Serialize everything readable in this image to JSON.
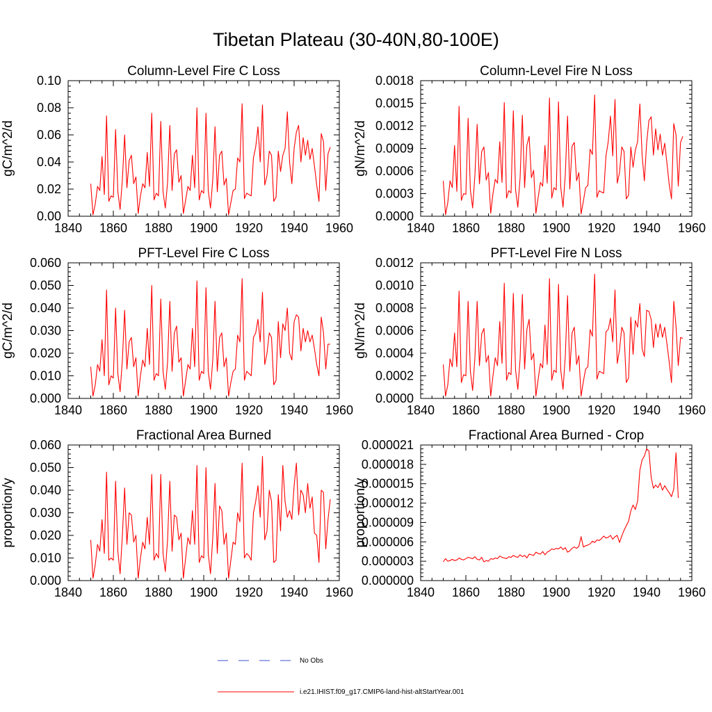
{
  "title": "Tibetan Plateau (30-40N,80-100E)",
  "legend": {
    "items": [
      {
        "label": "No Obs",
        "color": "#3b4fd1",
        "style": "dashed"
      },
      {
        "label": "i.e21.IHIST.f09_g17.CMIP6-land-hist-altStartYear.001",
        "color": "#ff0000",
        "style": "solid"
      }
    ]
  },
  "colors": {
    "series": "#ff0000",
    "axes": "#000000",
    "obs": "#3b4fd1"
  },
  "chart_data": [
    {
      "type": "line",
      "title": "Column-Level Fire C Loss",
      "ylabel": "gC/m^2/d",
      "xlim": [
        1840,
        1960
      ],
      "ylim": [
        0,
        0.1
      ],
      "xticks": [
        "1840",
        "1860",
        "1880",
        "1900",
        "1920",
        "1940",
        "1960"
      ],
      "yticks": [
        "0.00",
        "0.02",
        "0.04",
        "0.06",
        "0.08",
        "0.10"
      ],
      "x_start": 1850,
      "series": [
        {
          "name": "i.e21.IHIST.f09_g17.CMIP6-land-hist-altStartYear.001",
          "values": [
            0.024,
            0.001,
            0.009,
            0.022,
            0.019,
            0.044,
            0.016,
            0.074,
            0.011,
            0.015,
            0.014,
            0.064,
            0.018,
            0.005,
            0.027,
            0.06,
            0.021,
            0.041,
            0.045,
            0.024,
            0.029,
            0.002,
            0.015,
            0.024,
            0.021,
            0.047,
            0.022,
            0.076,
            0.012,
            0.017,
            0.015,
            0.07,
            0.018,
            0.006,
            0.025,
            0.067,
            0.019,
            0.046,
            0.049,
            0.025,
            0.03,
            0.002,
            0.012,
            0.022,
            0.019,
            0.045,
            0.021,
            0.08,
            0.012,
            0.019,
            0.017,
            0.076,
            0.019,
            0.006,
            0.027,
            0.066,
            0.018,
            0.045,
            0.048,
            0.023,
            0.028,
            0.001,
            0.01,
            0.019,
            0.02,
            0.043,
            0.04,
            0.083,
            0.013,
            0.017,
            0.016,
            0.015,
            0.043,
            0.051,
            0.066,
            0.04,
            0.082,
            0.023,
            0.03,
            0.048,
            0.045,
            0.011,
            0.014,
            0.048,
            0.033,
            0.045,
            0.05,
            0.077,
            0.04,
            0.024,
            0.05,
            0.062,
            0.067,
            0.04,
            0.058,
            0.045,
            0.056,
            0.042,
            0.05,
            0.037,
            0.023,
            0.011,
            0.061,
            0.055,
            0.019,
            0.046,
            0.051
          ]
        }
      ]
    },
    {
      "type": "line",
      "title": "Column-Level Fire N Loss",
      "ylabel": "gN/m^2/d",
      "xlim": [
        1840,
        1960
      ],
      "ylim": [
        0,
        0.0018
      ],
      "xticks": [
        "1840",
        "1860",
        "1880",
        "1900",
        "1920",
        "1940",
        "1960"
      ],
      "yticks": [
        "0.0000",
        "0.0003",
        "0.0006",
        "0.0009",
        "0.0012",
        "0.0015",
        "0.0018"
      ],
      "x_start": 1850,
      "series": [
        {
          "name": "i.e21.IHIST.f09_g17.CMIP6-land-hist-altStartYear.001",
          "values": [
            0.00047,
            2e-05,
            0.00018,
            0.00047,
            0.00038,
            0.00094,
            0.00033,
            0.00146,
            0.00021,
            0.0003,
            0.00029,
            0.0013,
            0.00035,
            0.00011,
            0.00054,
            0.00122,
            0.00043,
            0.00086,
            0.00092,
            0.00048,
            0.00058,
            4e-05,
            0.0003,
            0.00049,
            0.00044,
            0.00099,
            0.00045,
            0.00151,
            0.00024,
            0.00034,
            0.00031,
            0.0014,
            0.00035,
            0.00012,
            0.00051,
            0.00134,
            0.00038,
            0.00094,
            0.00106,
            0.00051,
            0.00061,
            4e-05,
            0.00025,
            0.00045,
            0.0004,
            0.00094,
            0.00044,
            0.00157,
            0.00024,
            0.00038,
            0.00035,
            0.00152,
            0.00038,
            0.00012,
            0.00055,
            0.00133,
            0.00036,
            0.00093,
            0.00098,
            0.00047,
            0.00058,
            3e-05,
            0.0002,
            0.00038,
            0.00041,
            0.00089,
            0.00082,
            0.00161,
            0.00025,
            0.00034,
            0.00032,
            0.00031,
            0.0008,
            0.00099,
            0.00133,
            0.0008,
            0.00155,
            0.00044,
            0.00058,
            0.00092,
            0.00086,
            0.00023,
            0.00028,
            0.00092,
            0.00065,
            0.00088,
            0.00099,
            0.00149,
            0.00081,
            0.00047,
            0.00097,
            0.00127,
            0.00132,
            0.00081,
            0.00116,
            0.00088,
            0.00109,
            0.00081,
            0.00097,
            0.0007,
            0.00042,
            0.00023,
            0.00123,
            0.00108,
            0.0004,
            0.00098,
            0.00106
          ]
        }
      ]
    },
    {
      "type": "line",
      "title": "PFT-Level Fire C Loss",
      "ylabel": "gC/m^2/d",
      "xlim": [
        1840,
        1960
      ],
      "ylim": [
        0,
        0.06
      ],
      "xticks": [
        "1840",
        "1860",
        "1880",
        "1900",
        "1920",
        "1940",
        "1960"
      ],
      "yticks": [
        "0.000",
        "0.010",
        "0.020",
        "0.030",
        "0.040",
        "0.050",
        "0.060"
      ],
      "x_start": 1850,
      "series": [
        {
          "name": "i.e21.IHIST.f09_g17.CMIP6-land-hist-altStartYear.001",
          "values": [
            0.014,
            0.001,
            0.006,
            0.015,
            0.012,
            0.026,
            0.01,
            0.048,
            0.006,
            0.01,
            0.009,
            0.04,
            0.011,
            0.003,
            0.017,
            0.039,
            0.013,
            0.025,
            0.027,
            0.014,
            0.018,
            0.001,
            0.01,
            0.017,
            0.014,
            0.031,
            0.015,
            0.05,
            0.008,
            0.011,
            0.01,
            0.044,
            0.012,
            0.004,
            0.016,
            0.043,
            0.012,
            0.029,
            0.032,
            0.016,
            0.018,
            0.001,
            0.008,
            0.015,
            0.013,
            0.031,
            0.014,
            0.052,
            0.008,
            0.012,
            0.011,
            0.049,
            0.012,
            0.004,
            0.017,
            0.043,
            0.012,
            0.027,
            0.029,
            0.014,
            0.018,
            0.001,
            0.007,
            0.012,
            0.013,
            0.028,
            0.025,
            0.053,
            0.008,
            0.012,
            0.011,
            0.01,
            0.027,
            0.029,
            0.035,
            0.025,
            0.047,
            0.015,
            0.02,
            0.029,
            0.027,
            0.006,
            0.008,
            0.034,
            0.018,
            0.033,
            0.03,
            0.04,
            0.02,
            0.017,
            0.034,
            0.037,
            0.036,
            0.021,
            0.031,
            0.025,
            0.03,
            0.025,
            0.028,
            0.022,
            0.015,
            0.01,
            0.036,
            0.029,
            0.013,
            0.024,
            0.024
          ]
        }
      ]
    },
    {
      "type": "line",
      "title": "PFT-Level Fire N Loss",
      "ylabel": "gN/m^2/d",
      "xlim": [
        1840,
        1960
      ],
      "ylim": [
        0,
        0.0012
      ],
      "xticks": [
        "1840",
        "1860",
        "1880",
        "1900",
        "1920",
        "1940",
        "1960"
      ],
      "yticks": [
        "0.0000",
        "0.0002",
        "0.0004",
        "0.0006",
        "0.0008",
        "0.0010",
        "0.0012"
      ],
      "x_start": 1850,
      "series": [
        {
          "name": "i.e21.IHIST.f09_g17.CMIP6-land-hist-altStartYear.001",
          "values": [
            0.0003,
            2e-05,
            0.00012,
            0.00035,
            0.00028,
            0.00058,
            0.00028,
            0.00095,
            0.00014,
            0.00021,
            0.0002,
            0.00086,
            0.00024,
            7e-05,
            0.00036,
            0.00086,
            0.00029,
            0.00057,
            0.00062,
            0.00032,
            0.00038,
            2e-05,
            0.0002,
            0.00036,
            0.00029,
            0.00068,
            0.00031,
            0.00102,
            0.00016,
            0.00023,
            0.00021,
            0.00093,
            0.00025,
            8e-05,
            0.00035,
            0.00092,
            0.00026,
            0.00061,
            0.0007,
            0.00034,
            0.0004,
            2e-05,
            0.00017,
            0.00031,
            0.00027,
            0.00065,
            0.0003,
            0.00106,
            0.00016,
            0.00025,
            0.00023,
            0.00101,
            0.00025,
            8e-05,
            0.00037,
            0.00091,
            0.00024,
            0.00058,
            0.00063,
            0.0003,
            0.00038,
            2e-05,
            0.00015,
            0.00026,
            0.00028,
            0.00061,
            0.00055,
            0.0011,
            0.00017,
            0.00024,
            0.00023,
            0.00022,
            0.00059,
            0.00061,
            0.00071,
            0.0005,
            0.00096,
            0.00031,
            0.00043,
            0.00063,
            0.00058,
            0.00014,
            0.00018,
            0.00072,
            0.00039,
            0.00069,
            0.00063,
            0.00084,
            0.00044,
            0.00037,
            0.00078,
            0.00077,
            0.0007,
            0.00045,
            0.00066,
            0.00054,
            0.00066,
            0.00054,
            0.00063,
            0.00048,
            0.00032,
            0.00014,
            0.00086,
            0.00064,
            0.00029,
            0.00054,
            0.00053
          ]
        }
      ]
    },
    {
      "type": "line",
      "title": "Fractional Area Burned",
      "ylabel": "proportion/y",
      "xlim": [
        1840,
        1960
      ],
      "ylim": [
        0,
        0.06
      ],
      "xticks": [
        "1840",
        "1860",
        "1880",
        "1900",
        "1920",
        "1940",
        "1960"
      ],
      "yticks": [
        "0.000",
        "0.010",
        "0.020",
        "0.030",
        "0.040",
        "0.050",
        "0.060"
      ],
      "x_start": 1850,
      "series": [
        {
          "name": "i.e21.IHIST.f09_g17.CMIP6-land-hist-altStartYear.001",
          "values": [
            0.018,
            0.001,
            0.007,
            0.016,
            0.013,
            0.027,
            0.012,
            0.048,
            0.009,
            0.01,
            0.009,
            0.044,
            0.013,
            0.003,
            0.02,
            0.041,
            0.016,
            0.03,
            0.029,
            0.017,
            0.02,
            0.001,
            0.01,
            0.017,
            0.014,
            0.028,
            0.016,
            0.047,
            0.009,
            0.012,
            0.01,
            0.047,
            0.012,
            0.004,
            0.018,
            0.044,
            0.013,
            0.029,
            0.028,
            0.018,
            0.021,
            0.001,
            0.01,
            0.019,
            0.016,
            0.031,
            0.016,
            0.051,
            0.008,
            0.011,
            0.01,
            0.05,
            0.012,
            0.003,
            0.019,
            0.043,
            0.012,
            0.033,
            0.031,
            0.016,
            0.021,
            0.001,
            0.009,
            0.017,
            0.016,
            0.03,
            0.026,
            0.052,
            0.01,
            0.012,
            0.011,
            0.009,
            0.03,
            0.035,
            0.042,
            0.028,
            0.055,
            0.018,
            0.022,
            0.04,
            0.035,
            0.008,
            0.009,
            0.038,
            0.022,
            0.051,
            0.035,
            0.028,
            0.031,
            0.027,
            0.042,
            0.052,
            0.029,
            0.04,
            0.038,
            0.03,
            0.043,
            0.032,
            0.037,
            0.021,
            0.02,
            0.008,
            0.04,
            0.039,
            0.014,
            0.027,
            0.036
          ]
        }
      ]
    },
    {
      "type": "line",
      "title": "Fractional Area Burned - Crop",
      "ylabel": "proportion/y",
      "xlim": [
        1840,
        1960
      ],
      "ylim": [
        0,
        2.1e-05
      ],
      "xticks": [
        "1840",
        "1860",
        "1880",
        "1900",
        "1920",
        "1940",
        "1960"
      ],
      "yticks": [
        "0.000000",
        "0.000003",
        "0.000006",
        "0.000009",
        "0.000012",
        "0.000015",
        "0.000018",
        "0.000021"
      ],
      "x_start": 1850,
      "series": [
        {
          "name": "i.e21.IHIST.f09_g17.CMIP6-land-hist-altStartYear.001",
          "values": [
            2.9e-06,
            3.4e-06,
            3e-06,
            3.1e-06,
            3.3e-06,
            3.1e-06,
            3.2e-06,
            3.5e-06,
            3.3e-06,
            3.2e-06,
            3.4e-06,
            3.6e-06,
            3.5e-06,
            3.4e-06,
            3.7e-06,
            3.3e-06,
            3.2e-06,
            3.6e-06,
            2.9e-06,
            3.1e-06,
            3e-06,
            3.4e-06,
            3.3e-06,
            3.5e-06,
            3.4e-06,
            3.8e-06,
            3.6e-06,
            3.5e-06,
            3.4e-06,
            3.7e-06,
            3.6e-06,
            3.9e-06,
            3.7e-06,
            3.6e-06,
            4e-06,
            3.7e-06,
            3.9e-06,
            3.5e-06,
            4.1e-06,
            4e-06,
            3.9e-06,
            4.4e-06,
            4.2e-06,
            4.1e-06,
            4.5e-06,
            4e-06,
            4.4e-06,
            4.6e-06,
            4.9e-06,
            4.8e-06,
            5e-06,
            4.9e-06,
            5.2e-06,
            4.8e-06,
            5.1e-06,
            4.4e-06,
            4.6e-06,
            5e-06,
            5.2e-06,
            5e-06,
            5.3e-06,
            6.8e-06,
            5.2e-06,
            5.4e-06,
            5.5e-06,
            5.7e-06,
            6.1e-06,
            5.9e-06,
            6.3e-06,
            6.2e-06,
            6.5e-06,
            6.9e-06,
            6.6e-06,
            6.7e-06,
            7e-06,
            6.4e-06,
            6.8e-06,
            7e-06,
            5.9e-06,
            6.9e-06,
            7.8e-06,
            8.5e-06,
            9.2e-06,
            1.08e-05,
            1.17e-05,
            1.1e-05,
            1.23e-05,
            1.71e-05,
            1.87e-05,
            1.93e-05,
            2.04e-05,
            2.01e-05,
            1.6e-05,
            1.43e-05,
            1.48e-05,
            1.44e-05,
            1.51e-05,
            1.4e-05,
            1.47e-05,
            1.41e-05,
            1.36e-05,
            1.3e-05,
            1.42e-05,
            1.98e-05,
            1.28e-05
          ]
        }
      ]
    }
  ]
}
